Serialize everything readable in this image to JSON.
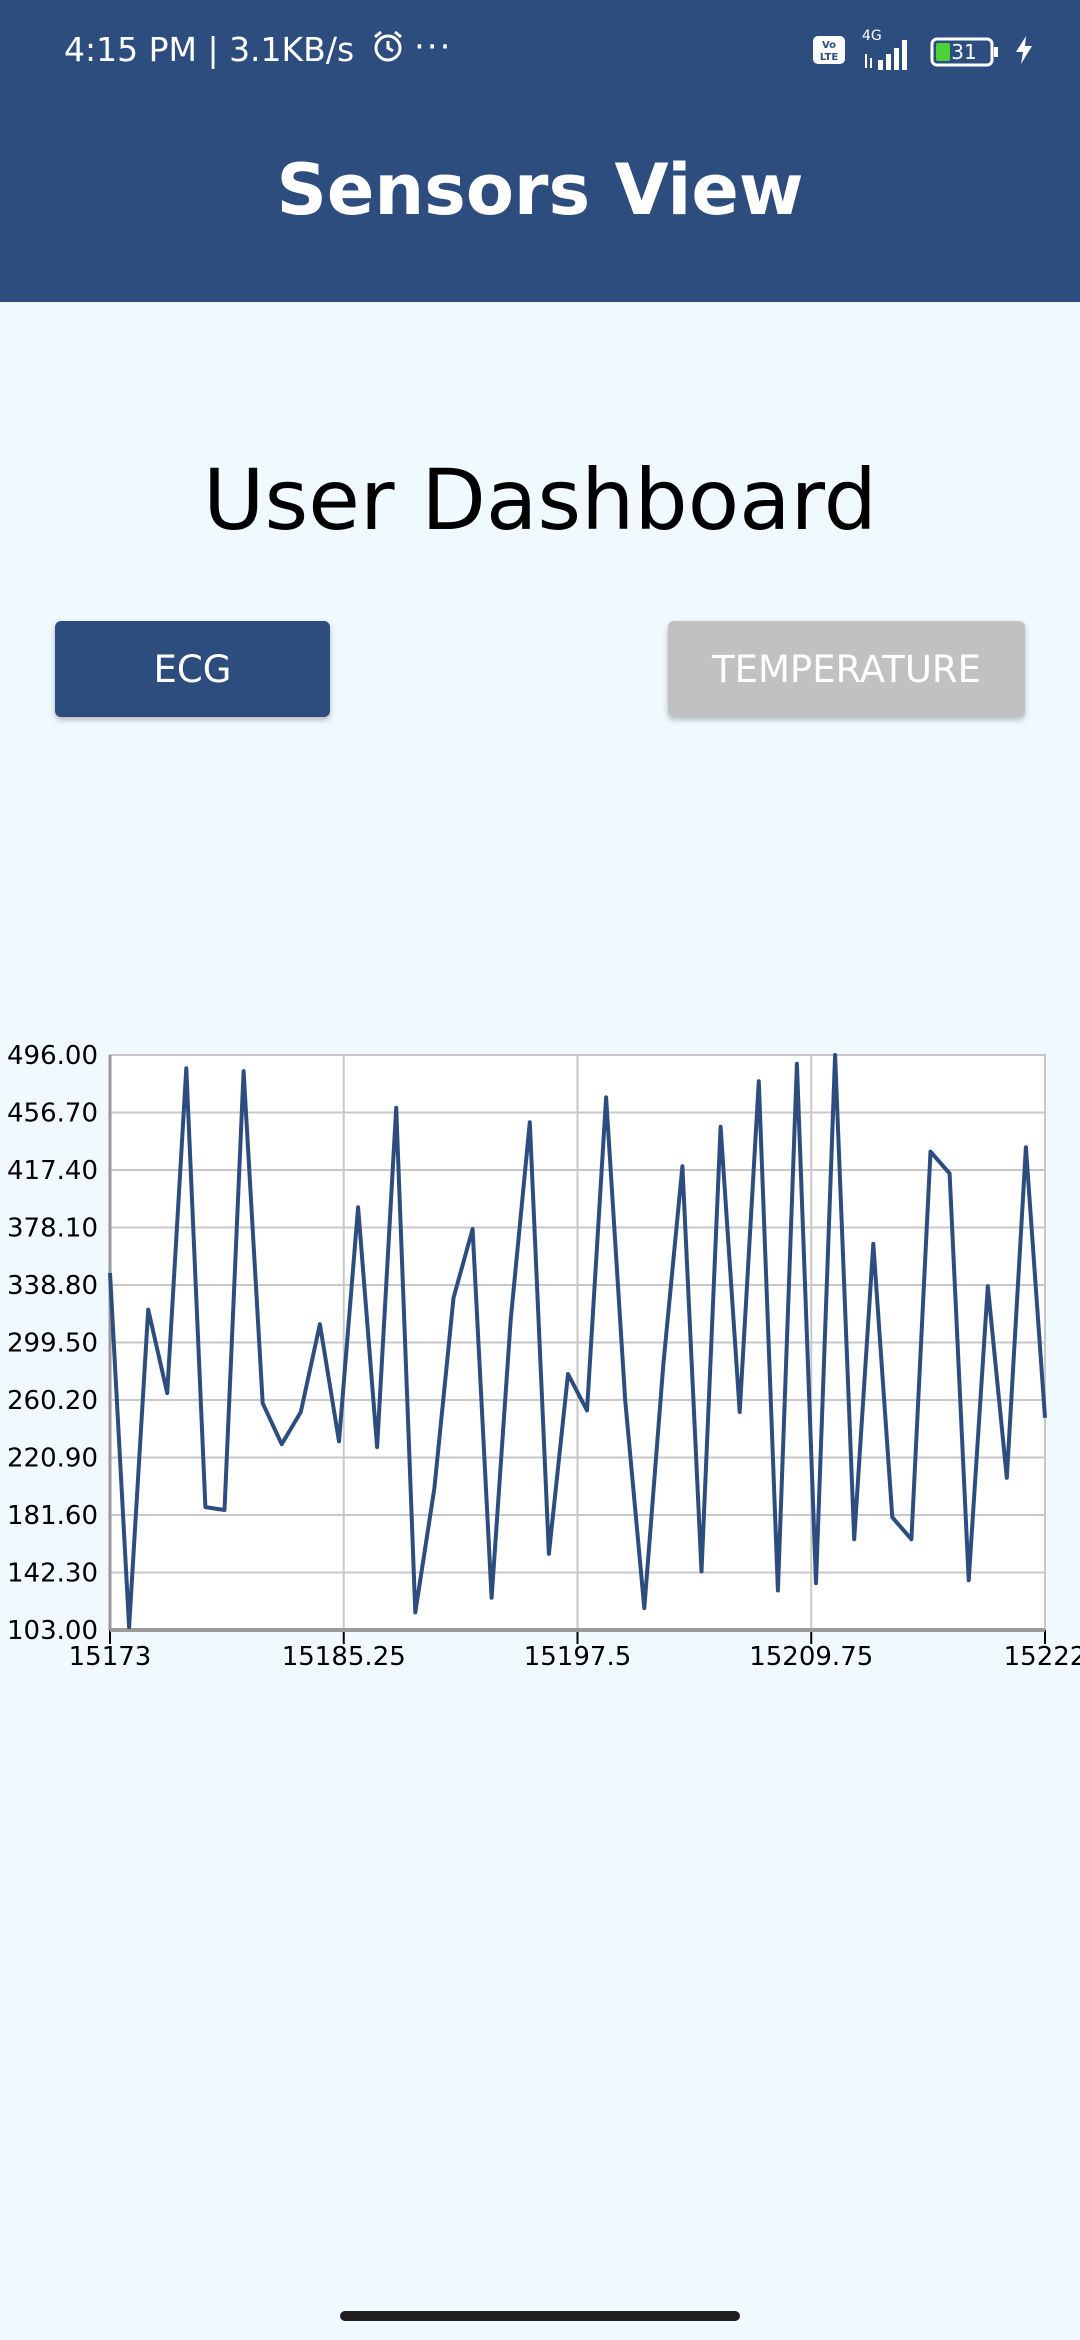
{
  "status_bar": {
    "time": "4:15 PM | 3.1KB/s",
    "more": "···",
    "network": "4G",
    "battery": "31"
  },
  "header": {
    "title": "Sensors View"
  },
  "main": {
    "title": "User Dashboard",
    "buttons": {
      "ecg": "ECG",
      "temperature": "TEMPERATURE"
    }
  },
  "colors": {
    "primary": "#2d4d7e",
    "inactive": "#c1c1c1",
    "background": "#f0f9fd"
  },
  "chart_data": {
    "type": "line",
    "xlim": [
      15173,
      15222
    ],
    "ylim": [
      103,
      496
    ],
    "x_ticks": [
      "15173",
      "15185.25",
      "15197.5",
      "15209.75",
      "15222"
    ],
    "y_ticks": [
      "496.00",
      "456.70",
      "417.40",
      "378.10",
      "338.80",
      "299.50",
      "260.20",
      "220.90",
      "181.60",
      "142.30",
      "103.00"
    ],
    "grid": true,
    "series": [
      {
        "color": "#2d4d7e",
        "x": [
          15173,
          15174,
          15175,
          15176,
          15177,
          15178,
          15179,
          15180,
          15181,
          15182,
          15183,
          15184,
          15185,
          15186,
          15187,
          15188,
          15189,
          15190,
          15191,
          15192,
          15193,
          15194,
          15195,
          15196,
          15197,
          15198,
          15199,
          15200,
          15201,
          15202,
          15203,
          15204,
          15205,
          15206,
          15207,
          15208,
          15209,
          15210,
          15211,
          15212,
          15213,
          15214,
          15215,
          15216,
          15217,
          15218,
          15219,
          15220,
          15221,
          15222
        ],
        "y": [
          347,
          105,
          322,
          265,
          487,
          187,
          185,
          485,
          258,
          230,
          252,
          312,
          232,
          392,
          228,
          460,
          115,
          200,
          330,
          377,
          125,
          315,
          450,
          155,
          278,
          253,
          467,
          260,
          118,
          285,
          420,
          143,
          447,
          252,
          478,
          130,
          490,
          135,
          496,
          165,
          367,
          180,
          165,
          430,
          415,
          137,
          338,
          207,
          433,
          248
        ]
      }
    ]
  }
}
